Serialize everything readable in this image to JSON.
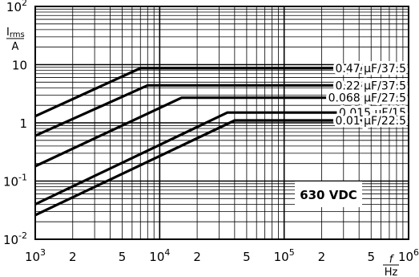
{
  "chart_data": {
    "type": "line",
    "xscale": "log",
    "yscale": "log",
    "xlim": [
      1000,
      1000000
    ],
    "ylim": [
      0.01,
      100
    ],
    "grid": true,
    "x_ticks_major": [
      {
        "value": 1000,
        "base": "10",
        "exp": "3"
      },
      {
        "value": 10000,
        "base": "10",
        "exp": "4"
      },
      {
        "value": 100000,
        "base": "10",
        "exp": "5"
      },
      {
        "value": 1000000,
        "base": "10",
        "exp": "6"
      }
    ],
    "x_ticks_minor_labels": [
      {
        "value": 2000,
        "label": "2"
      },
      {
        "value": 5000,
        "label": "5"
      },
      {
        "value": 20000,
        "label": "2"
      },
      {
        "value": 50000,
        "label": "5"
      },
      {
        "value": 200000,
        "label": "2"
      },
      {
        "value": 500000,
        "label": "5"
      }
    ],
    "y_ticks": [
      {
        "value": 100,
        "base": "10",
        "exp": "2"
      },
      {
        "value": 10,
        "base": "10",
        "exp": ""
      },
      {
        "value": 1,
        "base": "1",
        "exp": ""
      },
      {
        "value": 0.1,
        "base": "10",
        "exp": "-1"
      },
      {
        "value": 0.01,
        "base": "10",
        "exp": "-2"
      }
    ],
    "xlabel": {
      "symbol": "f",
      "unit": "Hz"
    },
    "ylabel": {
      "symbol": "I",
      "subscript": "rms",
      "unit": "A"
    },
    "annotation": "630 VDC",
    "series": [
      {
        "name": "0.47 µF/37.5",
        "x": [
          1000,
          7000,
          1000000
        ],
        "y": [
          1.3,
          8.7,
          8.7
        ]
      },
      {
        "name": "0.22 µF/37.5",
        "x": [
          1000,
          8000,
          1000000
        ],
        "y": [
          0.6,
          4.4,
          4.4
        ]
      },
      {
        "name": "0.068 µF/27.5",
        "x": [
          1000,
          15000,
          1000000
        ],
        "y": [
          0.18,
          2.7,
          2.7
        ]
      },
      {
        "name": "0.015 µF/15",
        "x": [
          1000,
          35000,
          1000000
        ],
        "y": [
          0.04,
          1.5,
          1.5
        ]
      },
      {
        "name": "0.01 µF/22.5",
        "x": [
          1000,
          40000,
          1000000
        ],
        "y": [
          0.026,
          1.1,
          1.1
        ]
      }
    ]
  }
}
